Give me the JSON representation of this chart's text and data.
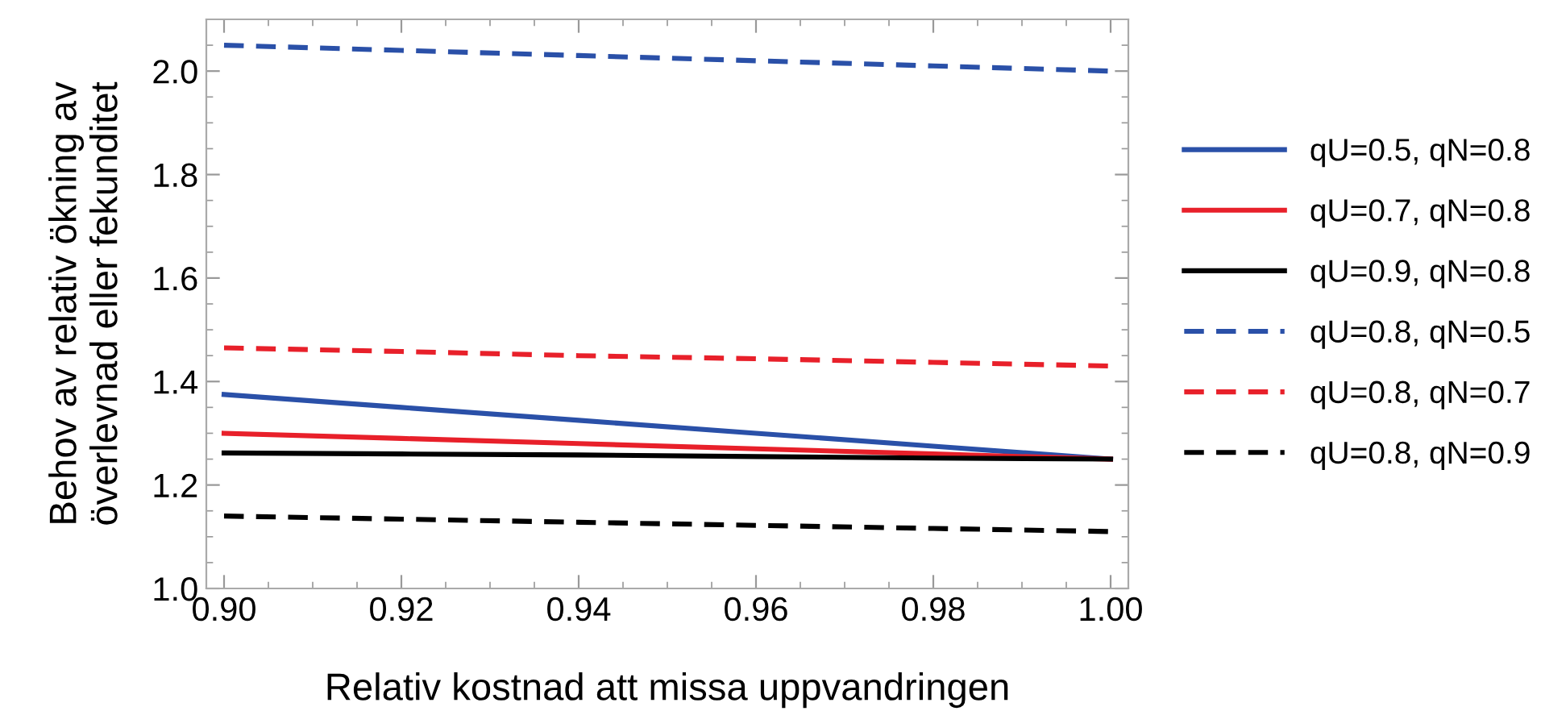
{
  "chart_data": {
    "type": "line",
    "xlabel": "Relativ kostnad att missa uppvandringen",
    "ylabel": "Behov av relativ ökning av\növerlevnad eller fekunditet",
    "x": [
      0.9,
      0.92,
      0.94,
      0.96,
      0.98,
      1.0
    ],
    "series": [
      {
        "name": "qU=0.5, qN=0.8",
        "color": "#2a50a8",
        "line_style": "solid",
        "values": [
          1.375,
          1.35,
          1.325,
          1.3,
          1.275,
          1.25
        ]
      },
      {
        "name": "qU=0.7, qN=0.8",
        "color": "#e8202a",
        "line_style": "solid",
        "values": [
          1.3,
          1.29,
          1.28,
          1.27,
          1.26,
          1.25
        ]
      },
      {
        "name": "qU=0.9, qN=0.8",
        "color": "#000000",
        "line_style": "solid",
        "values": [
          1.262,
          1.26,
          1.258,
          1.255,
          1.252,
          1.25
        ]
      },
      {
        "name": "qU=0.8, qN=0.5",
        "color": "#2a50a8",
        "line_style": "dashed",
        "values": [
          2.05,
          2.04,
          2.03,
          2.02,
          2.01,
          2.0
        ]
      },
      {
        "name": "qU=0.8, qN=0.7",
        "color": "#e8202a",
        "line_style": "dashed",
        "values": [
          1.465,
          1.458,
          1.45,
          1.444,
          1.437,
          1.43
        ]
      },
      {
        "name": "qU=0.8, qN=0.9",
        "color": "#000000",
        "line_style": "dashed",
        "values": [
          1.14,
          1.134,
          1.128,
          1.122,
          1.116,
          1.11
        ]
      }
    ],
    "xlim": [
      0.898,
      1.002
    ],
    "ylim": [
      1.0,
      2.1
    ],
    "xticks": [
      {
        "value": 0.9,
        "label": "0.90"
      },
      {
        "value": 0.92,
        "label": "0.92"
      },
      {
        "value": 0.94,
        "label": "0.94"
      },
      {
        "value": 0.96,
        "label": "0.96"
      },
      {
        "value": 0.98,
        "label": "0.98"
      },
      {
        "value": 1.0,
        "label": "1.00"
      }
    ],
    "yticks": [
      {
        "value": 1.0,
        "label": "1.0"
      },
      {
        "value": 1.2,
        "label": "1.2"
      },
      {
        "value": 1.4,
        "label": "1.4"
      },
      {
        "value": 1.6,
        "label": "1.6"
      },
      {
        "value": 1.8,
        "label": "1.8"
      },
      {
        "value": 2.0,
        "label": "2.0"
      }
    ],
    "grid": false,
    "legend": "right"
  }
}
